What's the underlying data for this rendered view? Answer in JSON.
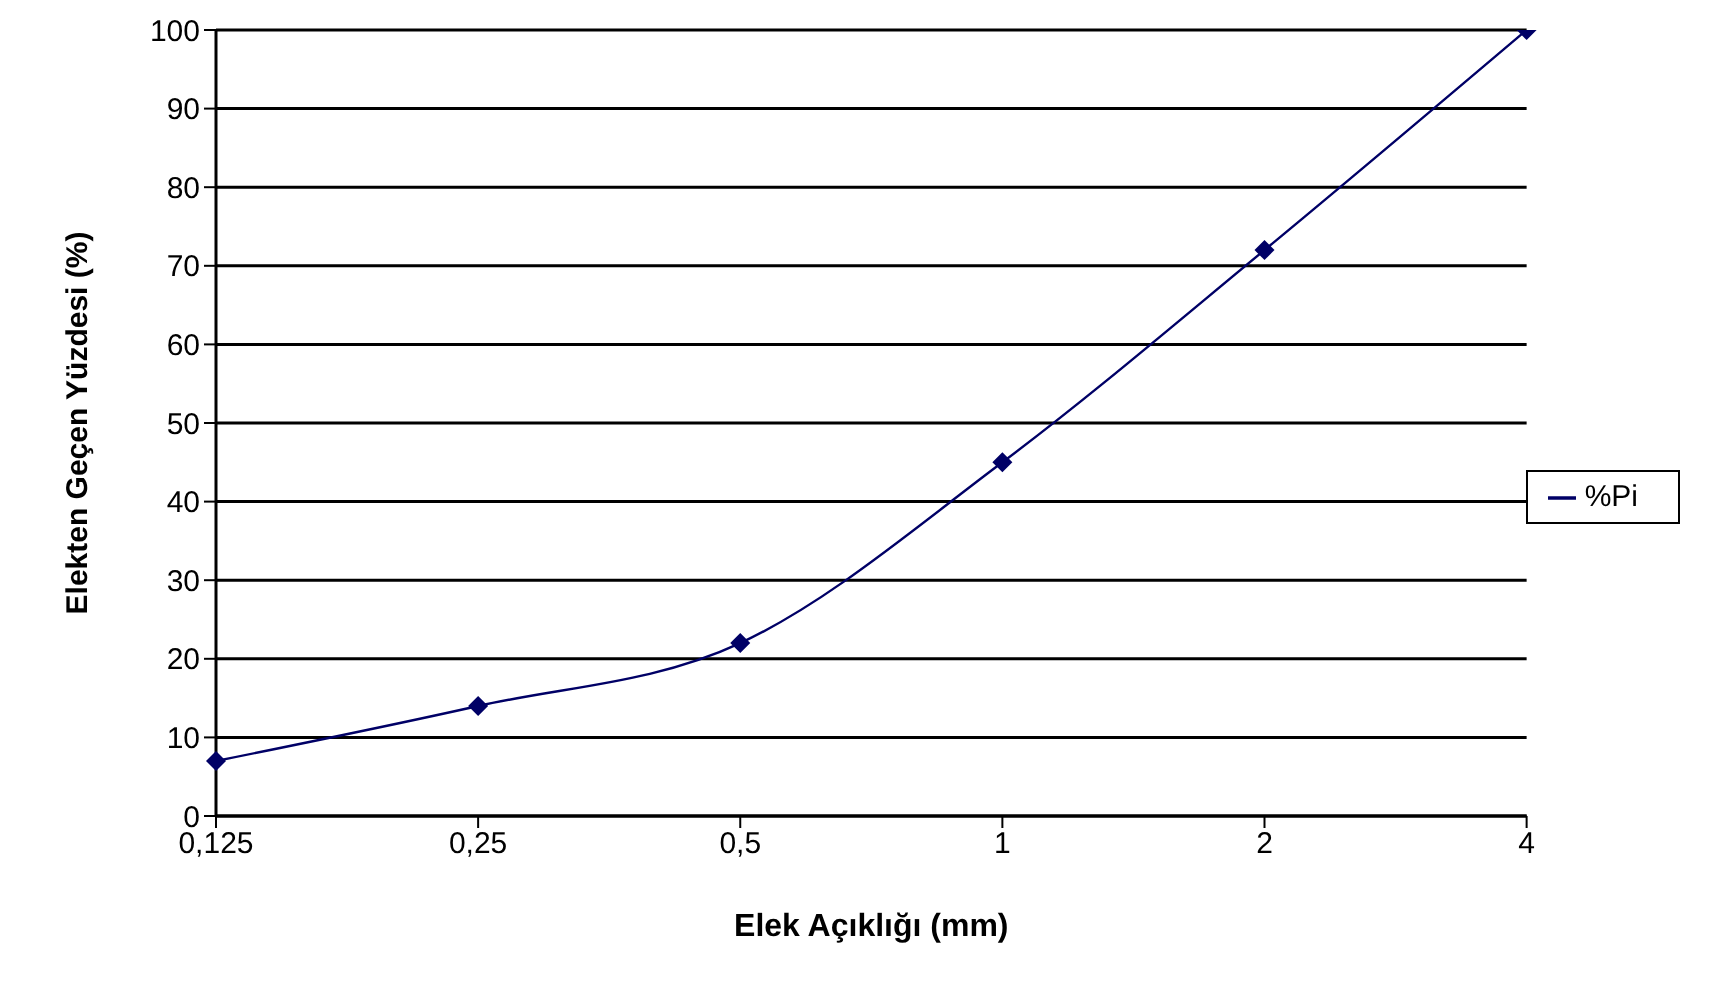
{
  "chart_data": {
    "type": "line",
    "xlabel": "Elek Açıklığı (mm)",
    "ylabel": "Elekten Geçen Yüzdesi (%)",
    "categories": [
      "0,125",
      "0,25",
      "0,5",
      "1",
      "2",
      "4"
    ],
    "series": [
      {
        "name": "%Pi",
        "color": "#000066",
        "values": [
          7,
          14,
          22,
          45,
          72,
          100
        ]
      }
    ],
    "ylim": [
      0,
      100
    ],
    "yticks": [
      0,
      10,
      20,
      30,
      40,
      50,
      60,
      70,
      80,
      90,
      100
    ],
    "grid": "y",
    "legend": "right",
    "marker": "diamond",
    "line_style": "solid"
  }
}
